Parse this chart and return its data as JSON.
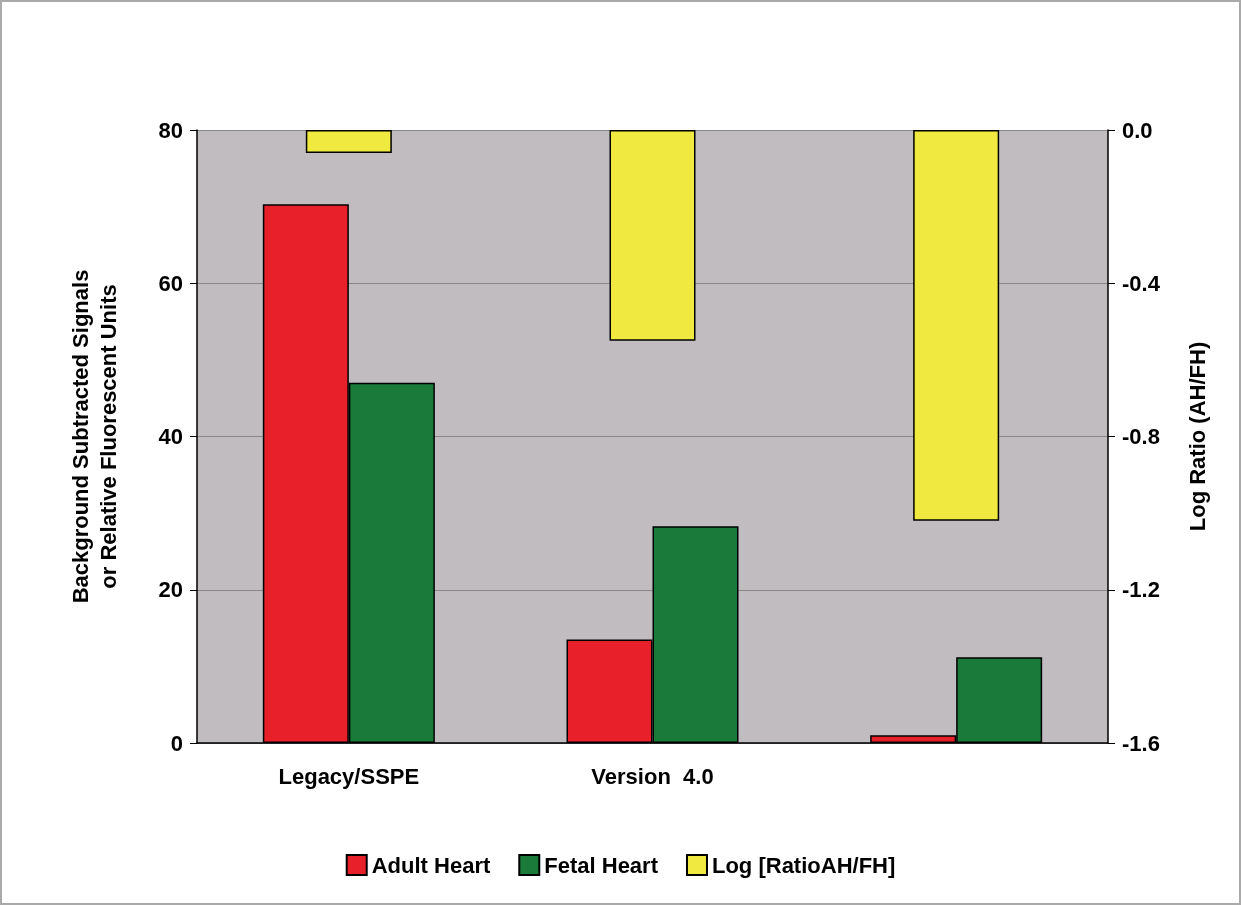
{
  "chart_data": {
    "type": "bar",
    "ylabel": "Background Subtracted Signals\nor Relative Fluorescent Units",
    "y2label": "Log Ratio (AH/FH)",
    "categories": [
      "Legacy/SSPE",
      "Version  4.0",
      null
    ],
    "series": [
      {
        "name": "Adult Heart",
        "color": "#e8202a",
        "values": [
          70.3,
          13.5,
          1.0
        ]
      },
      {
        "name": "Fetal Heart",
        "color": "#1a7a3a",
        "values": [
          47.0,
          28.3,
          11.2
        ]
      },
      {
        "name": "Log [RatioAH/FH]",
        "color": "#f0ea40",
        "values": [
          -0.06,
          -0.55,
          -1.02
        ],
        "axis": "y2"
      }
    ],
    "ylim": [
      0,
      80
    ],
    "yticks": [
      0,
      20,
      40,
      60,
      80
    ],
    "y2lim": [
      -1.6,
      0
    ],
    "y2ticks": [
      {
        "value": -1.6,
        "label": "-1.6"
      },
      {
        "value": -1.2,
        "label": "-1.2"
      },
      {
        "value": -0.8,
        "label": "-0.8"
      },
      {
        "value": -0.4,
        "label": "-0.4"
      },
      {
        "value": 0,
        "label": "0.0"
      }
    ],
    "grid": "y",
    "legend": "bottom"
  }
}
